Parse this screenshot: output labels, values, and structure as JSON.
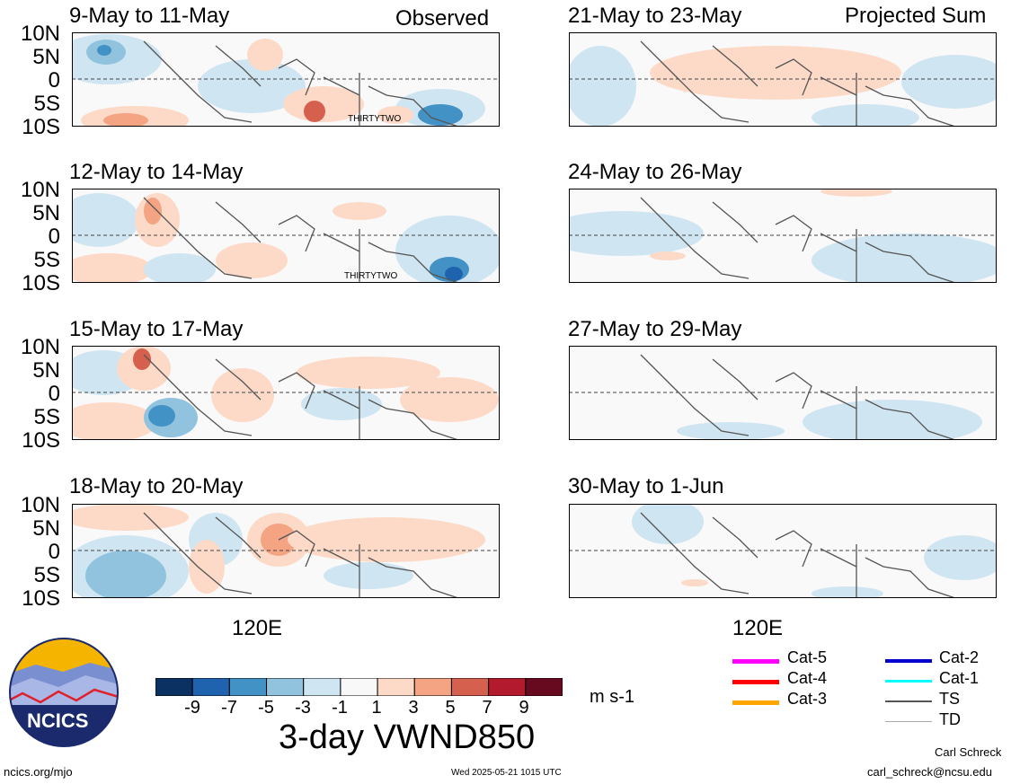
{
  "panels": {
    "left_column": [
      {
        "title": "9-May to 11-May",
        "corner": "Observed",
        "storm_label": "THIRTYTWO"
      },
      {
        "title": "12-May to 14-May",
        "corner": "",
        "storm_label": "THIRTYTWO"
      },
      {
        "title": "15-May to 17-May",
        "corner": "",
        "storm_label": ""
      },
      {
        "title": "18-May to 20-May",
        "corner": "",
        "storm_label": ""
      }
    ],
    "right_column": [
      {
        "title": "21-May to 23-May",
        "corner": "Projected Sum"
      },
      {
        "title": "24-May to 26-May",
        "corner": ""
      },
      {
        "title": "27-May to 29-May",
        "corner": ""
      },
      {
        "title": "30-May to 1-Jun",
        "corner": ""
      }
    ],
    "lat_labels": [
      "10N",
      "5N",
      "0",
      "5S",
      "10S"
    ],
    "lon_label": "120E"
  },
  "colorbar": {
    "tick_labels": [
      "-9",
      "-7",
      "-5",
      "-3",
      "-1",
      "1",
      "3",
      "5",
      "7",
      "9"
    ],
    "colors": [
      "#0b3062",
      "#1f63ae",
      "#4392c6",
      "#91c3df",
      "#d0e5f2",
      "#f8f8f8",
      "#fcdac7",
      "#f4a483",
      "#d6604e",
      "#b41a2d",
      "#670a1f"
    ],
    "units": "m s-1"
  },
  "title": "3-day VWND850",
  "logo": {
    "text": "NCICS"
  },
  "legend": [
    {
      "label": "Cat-5",
      "color": "#ff00ff"
    },
    {
      "label": "Cat-4",
      "color": "#ff0000"
    },
    {
      "label": "Cat-3",
      "color": "#ffa500"
    },
    {
      "label": "Cat-2",
      "color": "#0000cc"
    },
    {
      "label": "Cat-1",
      "color": "#00ffff"
    },
    {
      "label": "TS",
      "color": "#555555"
    },
    {
      "label": "TD",
      "color": "#aaaaaa"
    }
  ],
  "footer": {
    "url": "ncics.org/mjo",
    "timestamp": "Wed 2025-05-21 1015 UTC",
    "author": "Carl Schreck",
    "email": "carl_schreck@ncsu.edu"
  }
}
